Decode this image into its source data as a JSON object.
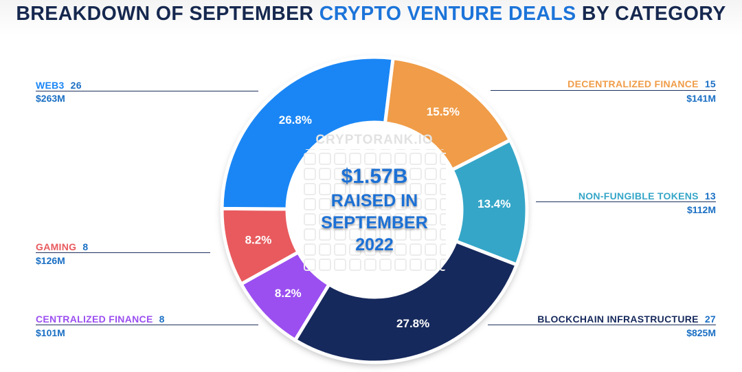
{
  "title": {
    "part1": "BREAKDOWN OF SEPTEMBER ",
    "highlight": "CRYPTO VENTURE DEALS",
    "part2": " BY CATEGORY"
  },
  "watermark": "CRYPTORANK.IO",
  "center_text": [
    "$1.57B",
    "RAISED IN",
    "SEPTEMBER",
    "2022"
  ],
  "colors": {
    "title": "#16284f",
    "title_highlight": "#1c74d9",
    "amount": "#1a6fc4"
  },
  "chart_data": {
    "type": "pie",
    "variant": "donut",
    "slices": [
      {
        "label": "DECENTRALIZED FINANCE",
        "count": "15",
        "amount": "$141M",
        "percent": 15.5,
        "percent_label": "15.5%",
        "color": "#f09c48"
      },
      {
        "label": "NON-FUNGIBLE TOKENS",
        "count": "13",
        "amount": "$112M",
        "percent": 13.4,
        "percent_label": "13.4%",
        "color": "#35a6c8"
      },
      {
        "label": "BLOCKCHAIN INFRASTRUCTURE",
        "count": "27",
        "amount": "$825M",
        "percent": 27.8,
        "percent_label": "27.8%",
        "color": "#16295c"
      },
      {
        "label": "CENTRALIZED FINANCE",
        "count": "8",
        "amount": "$101M",
        "percent": 8.2,
        "percent_label": "8.2%",
        "color": "#9b4ff0"
      },
      {
        "label": "GAMING",
        "count": "8",
        "amount": "$126M",
        "percent": 8.2,
        "percent_label": "8.2%",
        "color": "#e85a5e"
      },
      {
        "label": "WEB3",
        "count": "26",
        "amount": "$263M",
        "percent": 26.8,
        "percent_label": "26.8%",
        "color": "#1a86f5"
      }
    ]
  }
}
